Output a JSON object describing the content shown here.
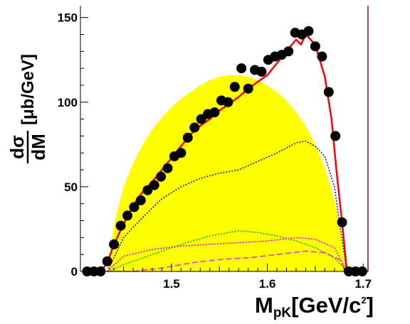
{
  "chart_data": {
    "type": "scatter",
    "title": "",
    "xlabel": {
      "main": "M",
      "sub": "pK",
      "unit": "[GeV/c",
      "sup": "2",
      "close": "]"
    },
    "ylabel": {
      "numerator": "dσ",
      "denominator": "dM",
      "unit": "[μb/GeV]"
    },
    "xlim": [
      1.405,
      1.705
    ],
    "ylim": [
      0,
      157
    ],
    "x_ticks": [
      1.5,
      1.6,
      1.7
    ],
    "x_tick_labels": [
      "1.5",
      "1.6",
      "1.7"
    ],
    "y_ticks": [
      0,
      50,
      100,
      150
    ],
    "y_tick_labels": [
      "0",
      "50",
      "100",
      "150"
    ],
    "grid": false,
    "legend": "none",
    "series": [
      {
        "kind": "filled-area",
        "color": "#ffff00",
        "x": [
          1.433,
          1.44,
          1.45,
          1.46,
          1.47,
          1.48,
          1.49,
          1.5,
          1.51,
          1.52,
          1.53,
          1.54,
          1.55,
          1.56,
          1.57,
          1.58,
          1.59,
          1.6,
          1.61,
          1.62,
          1.63,
          1.64,
          1.65,
          1.66,
          1.67,
          1.675,
          1.683
        ],
        "y": [
          0,
          28,
          50,
          64,
          75,
          84,
          91,
          97,
          102,
          106,
          110,
          113,
          115,
          116,
          116,
          115,
          113,
          110,
          106,
          101,
          94,
          86,
          75,
          61,
          42,
          28,
          0
        ]
      },
      {
        "kind": "points",
        "color": "#000000",
        "x": [
          1.412,
          1.419,
          1.426,
          1.433,
          1.44,
          1.447,
          1.454,
          1.461,
          1.468,
          1.475,
          1.482,
          1.489,
          1.496,
          1.503,
          1.51,
          1.517,
          1.524,
          1.531,
          1.538,
          1.545,
          1.552,
          1.559,
          1.566,
          1.573,
          1.58,
          1.587,
          1.594,
          1.601,
          1.608,
          1.615,
          1.622,
          1.629,
          1.636,
          1.643,
          1.65,
          1.657,
          1.664,
          1.671,
          1.678,
          1.685,
          1.692,
          1.699
        ],
        "y": [
          0,
          0,
          0,
          6,
          16,
          27,
          33,
          38,
          42,
          48,
          51,
          56,
          61,
          68,
          70,
          79,
          85,
          90,
          93,
          94,
          101,
          100,
          109,
          120,
          108,
          119,
          118,
          125,
          127,
          128,
          130,
          141,
          140,
          142,
          133,
          127,
          106,
          80,
          29,
          0,
          0,
          0
        ]
      },
      {
        "kind": "line",
        "style": "solid",
        "color": "#ff0000",
        "x": [
          1.412,
          1.426,
          1.433,
          1.44,
          1.45,
          1.46,
          1.47,
          1.48,
          1.49,
          1.5,
          1.51,
          1.52,
          1.53,
          1.54,
          1.55,
          1.56,
          1.57,
          1.58,
          1.59,
          1.6,
          1.61,
          1.62,
          1.63,
          1.635,
          1.64,
          1.65,
          1.66,
          1.667,
          1.672,
          1.678,
          1.683,
          1.699
        ],
        "y": [
          0,
          0,
          5,
          16,
          28,
          39,
          47,
          53,
          60,
          67,
          74,
          81,
          86,
          90,
          95,
          99,
          103,
          108,
          112,
          116,
          123,
          130,
          137,
          134,
          140,
          134,
          115,
          90,
          60,
          29,
          0,
          0
        ]
      },
      {
        "kind": "line",
        "style": "dotted",
        "color": "#1a237e",
        "x": [
          1.433,
          1.45,
          1.47,
          1.49,
          1.51,
          1.53,
          1.55,
          1.57,
          1.59,
          1.61,
          1.63,
          1.64,
          1.65,
          1.66,
          1.67,
          1.675,
          1.683
        ],
        "y": [
          0,
          20,
          32,
          43,
          50,
          55,
          58,
          60,
          65,
          70,
          76,
          77,
          74,
          68,
          50,
          30,
          0
        ]
      },
      {
        "kind": "line",
        "style": "dotted",
        "color": "#00c000",
        "x": [
          1.433,
          1.45,
          1.48,
          1.51,
          1.54,
          1.57,
          1.59,
          1.61,
          1.63,
          1.65,
          1.67,
          1.683
        ],
        "y": [
          0,
          4,
          10,
          16,
          21,
          24,
          23,
          21,
          18,
          14,
          8,
          0
        ]
      },
      {
        "kind": "line",
        "style": "dotted",
        "color": "#ff00ff",
        "x": [
          1.433,
          1.45,
          1.48,
          1.51,
          1.54,
          1.57,
          1.6,
          1.63,
          1.65,
          1.67,
          1.683
        ],
        "y": [
          0,
          9,
          13,
          15,
          16,
          17,
          18,
          20,
          19,
          14,
          0
        ]
      },
      {
        "kind": "line",
        "style": "dashed",
        "color": "#ff33cc",
        "x": [
          1.433,
          1.46,
          1.49,
          1.52,
          1.55,
          1.58,
          1.61,
          1.64,
          1.66,
          1.675,
          1.683
        ],
        "y": [
          0,
          0,
          2,
          5,
          7,
          8,
          10,
          12,
          11,
          7,
          0
        ]
      }
    ]
  }
}
